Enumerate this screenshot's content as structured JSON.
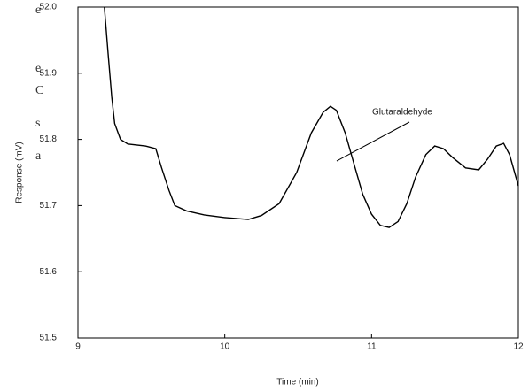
{
  "page_fragments": [
    "e",
    "e",
    "C",
    "s",
    "a"
  ],
  "chart_data": {
    "type": "line",
    "x_label": "Time (min)",
    "y_label": "Response (mV)",
    "annotation": "Glutaraldehyde",
    "color": "#000000",
    "x": [
      9.18,
      9.205,
      9.23,
      9.25,
      9.29,
      9.34,
      9.46,
      9.53,
      9.57,
      9.62,
      9.66,
      9.74,
      9.86,
      10.0,
      10.16,
      10.25,
      10.37,
      10.49,
      10.59,
      10.67,
      10.72,
      10.76,
      10.82,
      10.88,
      10.94,
      11.0,
      11.06,
      11.12,
      11.18,
      11.24,
      11.3,
      11.37,
      11.43,
      11.49,
      11.55,
      11.64,
      11.73,
      11.79,
      11.85,
      11.9,
      11.94,
      12.0
    ],
    "values": [
      52.0,
      51.93,
      51.864,
      51.824,
      51.8,
      51.793,
      51.79,
      51.786,
      51.757,
      51.723,
      51.7,
      51.692,
      51.686,
      51.682,
      51.679,
      51.685,
      51.703,
      51.75,
      51.81,
      51.841,
      51.85,
      51.844,
      51.81,
      51.763,
      51.717,
      51.687,
      51.67,
      51.667,
      51.676,
      51.703,
      51.743,
      51.777,
      51.79,
      51.786,
      51.773,
      51.757,
      51.754,
      51.77,
      51.79,
      51.794,
      51.777,
      51.73
    ],
    "xlim": [
      9,
      12
    ],
    "xticks": [
      9,
      10,
      11,
      12
    ],
    "ylim": [
      51.5,
      52
    ],
    "yticks": [
      51.5,
      51.6,
      51.7,
      51.8,
      51.9,
      {
        "value": 52,
        "label": "52.0"
      }
    ]
  }
}
